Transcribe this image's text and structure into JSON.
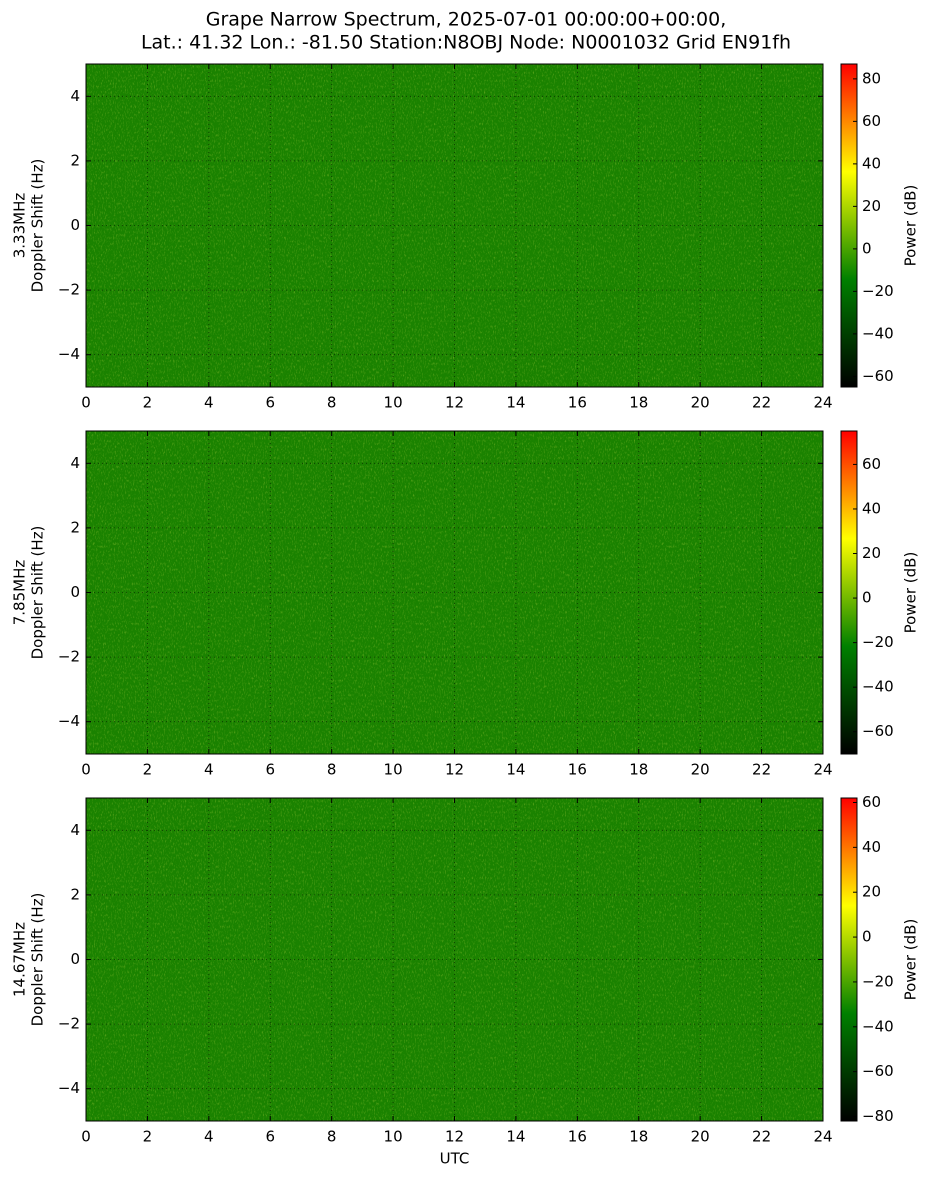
{
  "chart_data": [
    {
      "type": "heatmap",
      "title": [
        "Grape Narrow Spectrum, 2025-07-01 00:00:00+00:00,",
        "Lat.: 41.32 Lon.: -81.50 Station:N8OBJ Node: N0001032 Grid EN91fh"
      ],
      "ylabel": [
        "3.33MHz",
        "Doppler Shift (Hz)"
      ],
      "xlim": [
        0,
        24
      ],
      "xticks": [
        0,
        2,
        4,
        6,
        8,
        10,
        12,
        14,
        16,
        18,
        20,
        22,
        24
      ],
      "ylim": [
        -5,
        5
      ],
      "yticks": [
        {
          "value": -4,
          "label": "−4"
        },
        {
          "value": -2,
          "label": "−2"
        },
        0,
        2,
        4
      ],
      "grid": true,
      "colorbar": {
        "label": "Power (dB)",
        "lim": [
          -65,
          87
        ],
        "ticks": [
          {
            "value": -60,
            "label": "−60"
          },
          {
            "value": -40,
            "label": "−40"
          },
          {
            "value": -20,
            "label": "−20"
          },
          0,
          20,
          40,
          60,
          80
        ],
        "colors": [
          "#000000",
          "#008000",
          "#ffff00",
          "#ff0000"
        ]
      }
    },
    {
      "type": "heatmap",
      "ylabel": [
        "7.85MHz",
        "Doppler Shift (Hz)"
      ],
      "xlim": [
        0,
        24
      ],
      "xticks": [
        0,
        2,
        4,
        6,
        8,
        10,
        12,
        14,
        16,
        18,
        20,
        22,
        24
      ],
      "ylim": [
        -5,
        5
      ],
      "yticks": [
        {
          "value": -4,
          "label": "−4"
        },
        {
          "value": -2,
          "label": "−2"
        },
        0,
        2,
        4
      ],
      "grid": true,
      "colorbar": {
        "label": "Power (dB)",
        "lim": [
          -70,
          75
        ],
        "ticks": [
          {
            "value": -60,
            "label": "−60"
          },
          {
            "value": -40,
            "label": "−40"
          },
          {
            "value": -20,
            "label": "−20"
          },
          0,
          20,
          40,
          60
        ],
        "colors": [
          "#000000",
          "#008000",
          "#ffff00",
          "#ff0000"
        ]
      }
    },
    {
      "type": "heatmap",
      "ylabel": [
        "14.67MHz",
        "Doppler Shift (Hz)"
      ],
      "xlabel": "UTC",
      "xlim": [
        0,
        24
      ],
      "xticks": [
        0,
        2,
        4,
        6,
        8,
        10,
        12,
        14,
        16,
        18,
        20,
        22,
        24
      ],
      "ylim": [
        -5,
        5
      ],
      "yticks": [
        {
          "value": -4,
          "label": "−4"
        },
        {
          "value": -2,
          "label": "−2"
        },
        0,
        2,
        4
      ],
      "grid": true,
      "colorbar": {
        "label": "Power (dB)",
        "lim": [
          -82,
          62
        ],
        "ticks": [
          {
            "value": -80,
            "label": "−80"
          },
          {
            "value": -60,
            "label": "−60"
          },
          {
            "value": -40,
            "label": "−40"
          },
          {
            "value": -20,
            "label": "−20"
          },
          0,
          20,
          40,
          60
        ],
        "colors": [
          "#000000",
          "#008000",
          "#ffff00",
          "#ff0000"
        ]
      }
    }
  ]
}
